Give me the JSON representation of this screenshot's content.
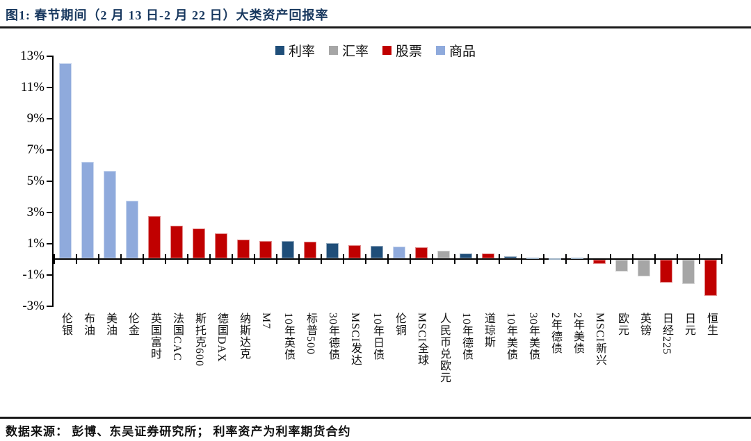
{
  "figure": {
    "title": "图1:  春节期间（2 月 13 日-2 月 22 日）大类资产回报率",
    "source_note": "数据来源： 彭博、东吴证券研究所； 利率资产为利率期货合约"
  },
  "chart_data": {
    "type": "bar",
    "title": "春节期间（2月13日-2月22日）大类资产回报率",
    "grid": false,
    "legend_position": "top-center",
    "ylim": [
      -3,
      13
    ],
    "ytick_values": [
      13,
      11,
      9,
      7,
      5,
      3,
      1,
      -1,
      -3
    ],
    "ytick_labels": [
      "13%",
      "11%",
      "9%",
      "7%",
      "5%",
      "3%",
      "1%",
      "-1%",
      "-3%"
    ],
    "legend": [
      {
        "label": "利率",
        "color": "#1F4E79"
      },
      {
        "label": "汇率",
        "color": "#A6A6A6"
      },
      {
        "label": "股票",
        "color": "#C00000"
      },
      {
        "label": "商品",
        "color": "#8FAADC"
      }
    ],
    "items": [
      {
        "label": "伦银",
        "value": 12.5,
        "category": "商品"
      },
      {
        "label": "布油",
        "value": 6.2,
        "category": "商品"
      },
      {
        "label": "美油",
        "value": 5.6,
        "category": "商品"
      },
      {
        "label": "伦金",
        "value": 3.7,
        "category": "商品"
      },
      {
        "label": "英国富时",
        "value": 2.7,
        "category": "股票"
      },
      {
        "label": "法国CAC",
        "value": 2.1,
        "category": "股票"
      },
      {
        "label": "斯托克600",
        "value": 1.9,
        "category": "股票"
      },
      {
        "label": "德国DAX",
        "value": 1.6,
        "category": "股票"
      },
      {
        "label": "纳斯达克",
        "value": 1.2,
        "category": "股票"
      },
      {
        "label": "M7",
        "value": 1.1,
        "category": "股票"
      },
      {
        "label": "10年英债",
        "value": 1.1,
        "category": "利率"
      },
      {
        "label": "标普500",
        "value": 1.05,
        "category": "股票"
      },
      {
        "label": "30年德债",
        "value": 1.0,
        "category": "利率"
      },
      {
        "label": "MSCI发达",
        "value": 0.85,
        "category": "股票"
      },
      {
        "label": "10年日债",
        "value": 0.8,
        "category": "利率"
      },
      {
        "label": "伦铜",
        "value": 0.75,
        "category": "商品"
      },
      {
        "label": "MSCI全球",
        "value": 0.7,
        "category": "股票"
      },
      {
        "label": "人民币兑欧元",
        "value": 0.5,
        "category": "汇率"
      },
      {
        "label": "10年德债",
        "value": 0.33,
        "category": "利率"
      },
      {
        "label": "道琼斯",
        "value": 0.31,
        "category": "股票"
      },
      {
        "label": "10年美债",
        "value": 0.13,
        "category": "利率"
      },
      {
        "label": "30年美债",
        "value": 0.04,
        "category": "利率"
      },
      {
        "label": "2年德债",
        "value": 0.02,
        "category": "利率"
      },
      {
        "label": "2年美债",
        "value": 0.05,
        "category": "利率"
      },
      {
        "label": "MSCI新兴",
        "value": -0.25,
        "category": "股票"
      },
      {
        "label": "欧元",
        "value": -0.75,
        "category": "汇率"
      },
      {
        "label": "英镑",
        "value": -1.05,
        "category": "汇率"
      },
      {
        "label": "日经225",
        "value": -1.45,
        "category": "股票"
      },
      {
        "label": "日元",
        "value": -1.55,
        "category": "汇率"
      },
      {
        "label": "恒生",
        "value": -2.3,
        "category": "股票"
      }
    ]
  }
}
